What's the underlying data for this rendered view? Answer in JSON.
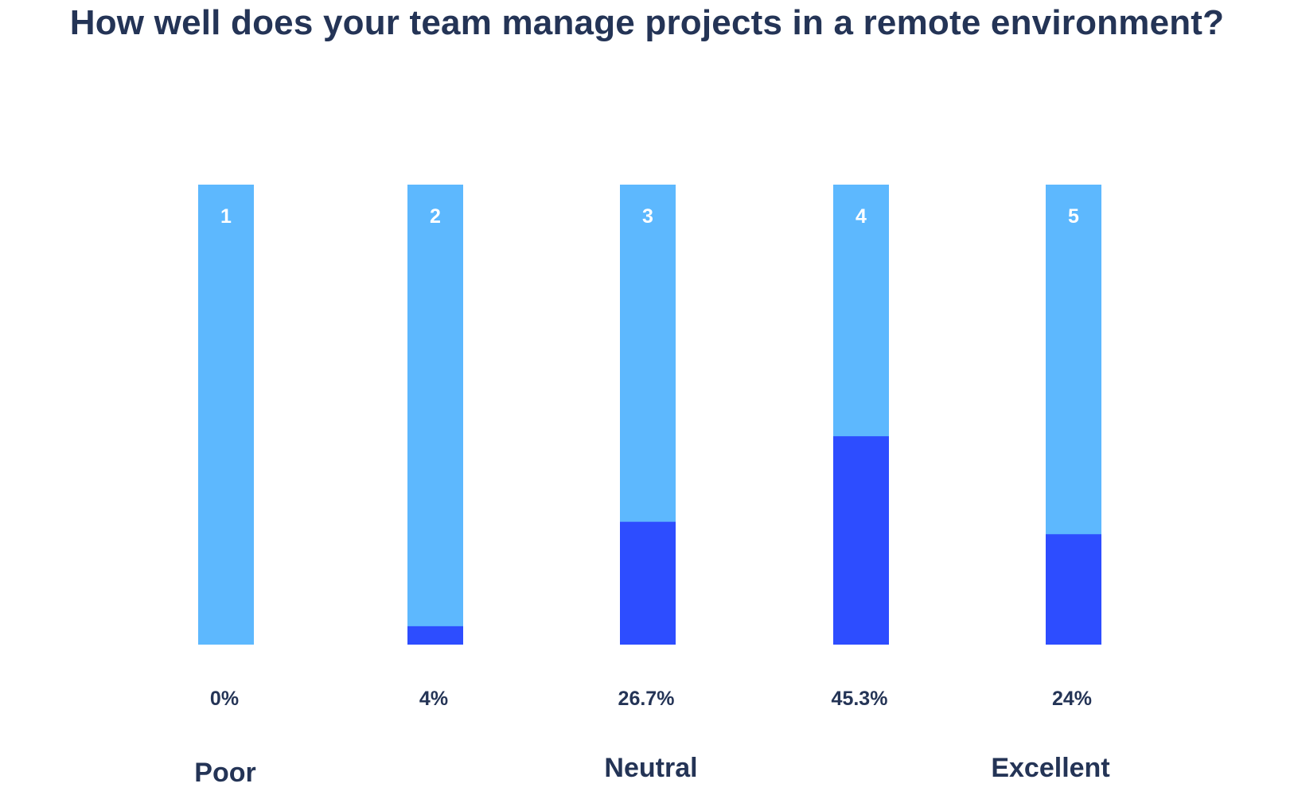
{
  "chart_data": {
    "type": "bar",
    "title": "How well does your team manage projects in a remote environment?",
    "categories": [
      "1",
      "2",
      "3",
      "4",
      "5"
    ],
    "values": [
      0,
      4,
      26.7,
      45.3,
      24
    ],
    "value_labels": [
      "0%",
      "4%",
      "26.7%",
      "45.3%",
      "24%"
    ],
    "scale_labels": [
      {
        "category": "1",
        "text": "Poor"
      },
      {
        "category": "3",
        "text": "Neutral"
      },
      {
        "category": "5",
        "text": "Excellent"
      }
    ],
    "ylim": [
      0,
      100
    ],
    "xlabel": "",
    "ylabel": "",
    "grid": false,
    "colors": {
      "track": "#5DB8FE",
      "fill": "#2D4DFF",
      "category_label": "#FFFFFF",
      "text": "#243456"
    }
  }
}
